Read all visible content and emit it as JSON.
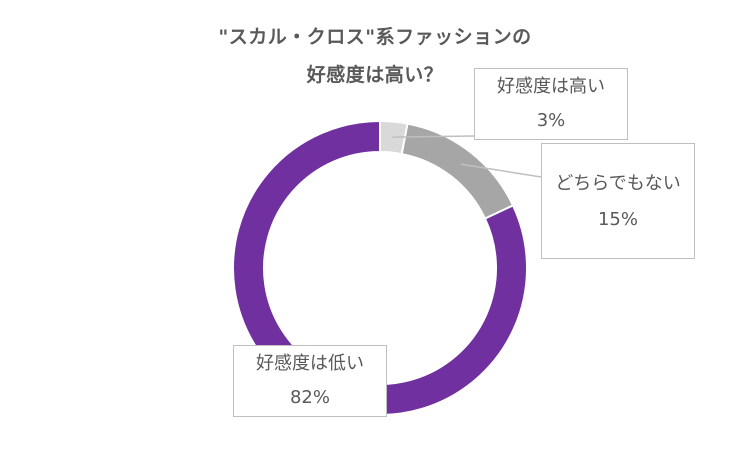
{
  "title": {
    "line1": "\"スカル・クロス\"系ファッションの",
    "line2": "好感度は高い？"
  },
  "colors": {
    "high": "#d9d9d9",
    "neutral": "#a6a6a6",
    "low": "#7030a0",
    "separator": "#ffffff",
    "callout_border": "#bfbfbf",
    "text": "#595959"
  },
  "chart_data": {
    "type": "pie",
    "variant": "donut",
    "title": "\"スカル・クロス\"系ファッションの好感度は高い？",
    "categories": [
      "好感度は高い",
      "どちらでもない",
      "好感度は低い"
    ],
    "values": [
      3,
      15,
      82
    ],
    "value_labels": [
      "3%",
      "15%",
      "82%"
    ],
    "unit": "%",
    "start_angle_deg": 0,
    "direction": "clockwise",
    "legend": "none",
    "data_labels": "callouts"
  }
}
